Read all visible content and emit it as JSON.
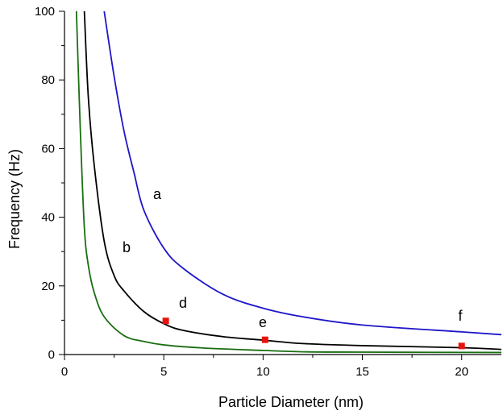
{
  "chart_data": {
    "type": "line",
    "title": "",
    "xlabel": "Particle Diameter (nm)",
    "ylabel": "Frequency (Hz)",
    "xlim": [
      0,
      22
    ],
    "ylim": [
      0,
      100
    ],
    "x_ticks": [
      0,
      5,
      10,
      15,
      20
    ],
    "y_ticks": [
      0,
      20,
      40,
      60,
      80,
      100
    ],
    "grid": false,
    "legend": "none",
    "series": [
      {
        "label": "a",
        "color": "#1f16c8",
        "x": [
          2.0,
          2.5,
          3.0,
          3.5,
          4.0,
          5.0,
          6.0,
          8.0,
          10.0,
          12.0,
          15.0,
          20.0,
          22.0
        ],
        "y": [
          100,
          81,
          65,
          53,
          42,
          31,
          25,
          17.5,
          13.5,
          11,
          8.6,
          6.6,
          5.8
        ]
      },
      {
        "label": "b",
        "color": "#000000",
        "x": [
          1.0,
          1.2,
          1.5,
          2.0,
          2.5,
          3.0,
          4.0,
          5.0,
          6.0,
          8.0,
          10.0,
          12.0,
          15.0,
          20.0,
          22.0
        ],
        "y": [
          100,
          75,
          55,
          33,
          23,
          18.5,
          12.5,
          9,
          7,
          5.2,
          4.2,
          3.2,
          2.6,
          2.0,
          1.5
        ]
      },
      {
        "label": "",
        "color": "#1a6e12",
        "x": [
          0.6,
          0.8,
          1.0,
          1.2,
          1.5,
          2.0,
          3.0,
          4.0,
          5.0,
          7.0,
          10.0,
          12.0,
          15.0,
          22.0
        ],
        "y": [
          100,
          65,
          37,
          26,
          18,
          11,
          5.5,
          3.8,
          2.8,
          1.9,
          1.2,
          0.8,
          0.7,
          0.6
        ]
      }
    ],
    "points": [
      {
        "label": "d",
        "x": 5.1,
        "y": 9.8,
        "color": "#e8130d"
      },
      {
        "label": "e",
        "x": 10.1,
        "y": 4.3,
        "color": "#e8130d"
      },
      {
        "label": "f",
        "x": 20.0,
        "y": 2.5,
        "color": "#e8130d"
      }
    ]
  }
}
